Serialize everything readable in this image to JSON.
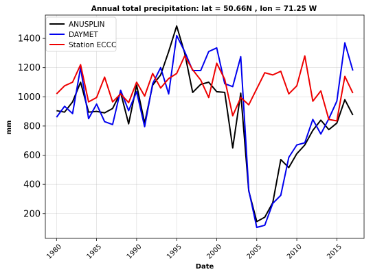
{
  "chart_data": {
    "type": "line",
    "title": "Annual total precipitation: lat = 50.66N , lon = 71.25 W",
    "xlabel": "Date",
    "ylabel": "mm",
    "xlim": [
      1978.6,
      2018.4
    ],
    "ylim": [
      30,
      1560
    ],
    "xticks": [
      1980,
      1985,
      1990,
      1995,
      2000,
      2005,
      2010,
      2015
    ],
    "yticks": [
      200,
      400,
      600,
      800,
      1000,
      1200,
      1400
    ],
    "grid": true,
    "legend_position": "top-left",
    "x": [
      1980,
      1981,
      1982,
      1983,
      1984,
      1985,
      1986,
      1987,
      1988,
      1989,
      1990,
      1991,
      1992,
      1993,
      1994,
      1995,
      1996,
      1997,
      1998,
      1999,
      2000,
      2001,
      2002,
      2003,
      2004,
      2005,
      2006,
      2007,
      2008,
      2009,
      2010,
      2011,
      2012,
      2013,
      2014,
      2015,
      2016,
      2017
    ],
    "series": [
      {
        "name": "ANUSPLIN",
        "color": "#000000",
        "values": [
          905,
          895,
          965,
          1100,
          895,
          900,
          890,
          920,
          1030,
          815,
          1080,
          820,
          1080,
          1150,
          1310,
          1485,
          1300,
          1030,
          1085,
          1100,
          1035,
          1030,
          650,
          1025,
          355,
          145,
          175,
          275,
          570,
          515,
          610,
          670,
          770,
          840,
          775,
          820,
          980,
          875
        ]
      },
      {
        "name": "DAYMET",
        "color": "#0000ee",
        "values": [
          860,
          935,
          885,
          1200,
          850,
          950,
          830,
          810,
          1045,
          905,
          1035,
          795,
          1090,
          1200,
          1020,
          1420,
          1310,
          1180,
          1180,
          1310,
          1335,
          1090,
          1070,
          1275,
          360,
          105,
          120,
          270,
          325,
          585,
          670,
          685,
          845,
          745,
          850,
          970,
          1370,
          1180
        ]
      },
      {
        "name": "Station ECCC",
        "color": "#ee0000",
        "values": [
          1020,
          1075,
          1100,
          1220,
          965,
          995,
          1135,
          965,
          1020,
          960,
          1100,
          1005,
          1160,
          1060,
          1125,
          1160,
          1280,
          1185,
          1115,
          995,
          1230,
          1120,
          870,
          995,
          945,
          1055,
          1165,
          1150,
          1175,
          1020,
          1075,
          1280,
          970,
          1040,
          845,
          835,
          1140,
          1025
        ]
      }
    ]
  }
}
